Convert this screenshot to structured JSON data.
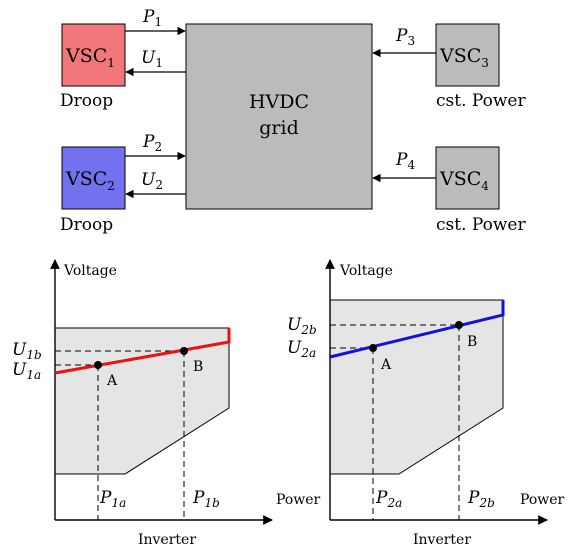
{
  "colors": {
    "vsc1": "#F2777A",
    "vsc2": "#7272F0",
    "vsc3": "#BBBBBB",
    "vsc4": "#BBBBBB",
    "grid": "#BBBBBB",
    "region": "#E5E5E5",
    "line_left": "#EE1111",
    "line_right": "#1111DD"
  },
  "grid": {
    "line1": "HVDC",
    "line2": "grid"
  },
  "converters": [
    {
      "id": "vsc1",
      "base": "VSC",
      "sub": "1",
      "caption": "Droop",
      "power": "P",
      "power_sub": "1",
      "voltage": "U",
      "voltage_sub": "1"
    },
    {
      "id": "vsc2",
      "base": "VSC",
      "sub": "2",
      "caption": "Droop",
      "power": "P",
      "power_sub": "2",
      "voltage": "U",
      "voltage_sub": "2"
    },
    {
      "id": "vsc3",
      "base": "VSC",
      "sub": "3",
      "caption": "cst. Power",
      "power": "P",
      "power_sub": "3"
    },
    {
      "id": "vsc4",
      "base": "VSC",
      "sub": "4",
      "caption": "cst. Power",
      "power": "P",
      "power_sub": "4"
    }
  ],
  "plots": [
    {
      "y_axis": "Voltage",
      "x_axis": "Power",
      "x_caption": "Inverter",
      "u_a": {
        "base": "U",
        "sub": "1a"
      },
      "u_b": {
        "base": "U",
        "sub": "1b"
      },
      "p_a": {
        "base": "P",
        "sub": "1a"
      },
      "p_b": {
        "base": "P",
        "sub": "1b"
      },
      "point_a": "A",
      "point_b": "B"
    },
    {
      "y_axis": "Voltage",
      "x_axis": "Power",
      "x_caption": "Inverter",
      "u_a": {
        "base": "U",
        "sub": "2a"
      },
      "u_b": {
        "base": "U",
        "sub": "2b"
      },
      "p_a": {
        "base": "P",
        "sub": "2a"
      },
      "p_b": {
        "base": "P",
        "sub": "2b"
      },
      "point_a": "A",
      "point_b": "B"
    }
  ]
}
